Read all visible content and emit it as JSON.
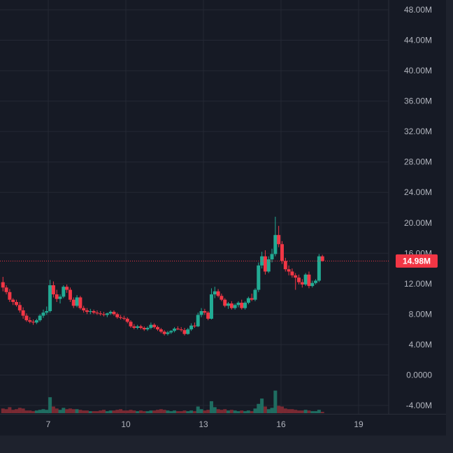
{
  "colors": {
    "background": "#161a25",
    "frame": "#1e222d",
    "grid": "#242834",
    "text": "#b2b5be",
    "up": "#22ab94",
    "down": "#f23645",
    "up_volume": "#1f6d61",
    "down_volume": "#7a2a33"
  },
  "chart_data": {
    "type": "candlestick",
    "ylim": [
      -5000000,
      50000000
    ],
    "y_ticks": [
      {
        "value": 48000000,
        "label": "48.00M"
      },
      {
        "value": 44000000,
        "label": "44.00M"
      },
      {
        "value": 40000000,
        "label": "40.00M"
      },
      {
        "value": 36000000,
        "label": "36.00M"
      },
      {
        "value": 32000000,
        "label": "32.00M"
      },
      {
        "value": 28000000,
        "label": "28.00M"
      },
      {
        "value": 24000000,
        "label": "24.00M"
      },
      {
        "value": 20000000,
        "label": "20.00M"
      },
      {
        "value": 16000000,
        "label": "16.00M"
      },
      {
        "value": 12000000,
        "label": "12.00M"
      },
      {
        "value": 8000000,
        "label": "8.00M"
      },
      {
        "value": 4000000,
        "label": "4.00M"
      },
      {
        "value": 0,
        "label": "0.0000"
      },
      {
        "value": -4000000,
        "label": "-4.00M"
      }
    ],
    "x_ticks": [
      {
        "x": 7,
        "label": "7"
      },
      {
        "x": 10,
        "label": "10"
      },
      {
        "x": 13,
        "label": "13"
      },
      {
        "x": 16,
        "label": "16"
      },
      {
        "x": 19,
        "label": "19"
      }
    ],
    "x_range": [
      5.2,
      19.85
    ],
    "last_price": {
      "value": 14980000,
      "label": "14.98M"
    },
    "candles": [
      [
        5.25,
        12.2,
        12.9,
        11.0,
        11.5
      ],
      [
        5.38,
        11.5,
        11.8,
        10.6,
        10.9
      ],
      [
        5.51,
        10.9,
        11.3,
        9.6,
        9.9
      ],
      [
        5.64,
        9.9,
        10.1,
        9.2,
        9.6
      ],
      [
        5.77,
        9.6,
        9.9,
        9.0,
        9.2
      ],
      [
        5.9,
        9.2,
        9.6,
        8.2,
        8.5
      ],
      [
        6.03,
        8.5,
        8.9,
        7.4,
        7.8
      ],
      [
        6.16,
        7.8,
        8.1,
        7.0,
        7.2
      ],
      [
        6.29,
        7.2,
        7.6,
        6.8,
        7.0
      ],
      [
        6.42,
        7.0,
        7.3,
        6.6,
        6.9
      ],
      [
        6.55,
        6.9,
        7.4,
        6.7,
        7.2
      ],
      [
        6.68,
        7.2,
        8.0,
        7.0,
        7.8
      ],
      [
        6.81,
        7.8,
        8.6,
        7.5,
        8.2
      ],
      [
        6.94,
        8.2,
        9.0,
        7.9,
        8.4
      ],
      [
        7.07,
        8.4,
        12.5,
        8.2,
        11.8
      ],
      [
        7.2,
        11.8,
        12.3,
        10.2,
        10.6
      ],
      [
        7.33,
        10.6,
        11.2,
        9.6,
        10.0
      ],
      [
        7.46,
        10.0,
        10.6,
        9.4,
        10.3
      ],
      [
        7.59,
        10.3,
        11.8,
        10.1,
        11.6
      ],
      [
        7.72,
        11.6,
        11.9,
        10.8,
        11.2
      ],
      [
        7.85,
        11.2,
        11.5,
        9.6,
        9.9
      ],
      [
        7.98,
        9.9,
        10.2,
        8.8,
        9.1
      ],
      [
        8.11,
        9.1,
        10.5,
        8.9,
        10.2
      ],
      [
        8.24,
        10.2,
        10.4,
        8.6,
        8.8
      ],
      [
        8.37,
        8.8,
        9.1,
        8.2,
        8.5
      ],
      [
        8.5,
        8.5,
        8.8,
        8.0,
        8.3
      ],
      [
        8.63,
        8.3,
        8.7,
        8.0,
        8.4
      ],
      [
        8.76,
        8.4,
        8.6,
        8.0,
        8.2
      ],
      [
        8.89,
        8.2,
        8.5,
        7.9,
        8.1
      ],
      [
        9.02,
        8.1,
        8.4,
        7.8,
        8.0
      ],
      [
        9.15,
        8.0,
        8.3,
        7.7,
        7.9
      ],
      [
        9.28,
        7.9,
        8.2,
        7.6,
        8.1
      ],
      [
        9.41,
        8.1,
        8.5,
        7.9,
        8.3
      ],
      [
        9.54,
        8.3,
        8.5,
        7.8,
        8.0
      ],
      [
        9.67,
        8.0,
        8.2,
        7.4,
        7.6
      ],
      [
        9.8,
        7.6,
        7.9,
        7.3,
        7.5
      ],
      [
        9.93,
        7.5,
        7.8,
        7.2,
        7.4
      ],
      [
        10.06,
        7.4,
        7.6,
        6.8,
        7.0
      ],
      [
        10.19,
        7.0,
        7.2,
        6.2,
        6.4
      ],
      [
        10.32,
        6.4,
        6.7,
        6.0,
        6.2
      ],
      [
        10.45,
        6.2,
        6.6,
        6.0,
        6.4
      ],
      [
        10.58,
        6.4,
        6.6,
        6.0,
        6.2
      ],
      [
        10.71,
        6.2,
        6.4,
        5.8,
        6.0
      ],
      [
        10.84,
        6.0,
        6.4,
        5.8,
        6.2
      ],
      [
        10.97,
        6.2,
        6.9,
        6.0,
        6.6
      ],
      [
        11.1,
        6.6,
        6.8,
        6.1,
        6.3
      ],
      [
        11.23,
        6.3,
        6.5,
        5.8,
        6.0
      ],
      [
        11.36,
        6.0,
        6.2,
        5.5,
        5.7
      ],
      [
        11.49,
        5.7,
        5.9,
        5.2,
        5.4
      ],
      [
        11.62,
        5.4,
        5.8,
        5.2,
        5.6
      ],
      [
        11.75,
        5.6,
        5.9,
        5.4,
        5.8
      ],
      [
        11.88,
        5.8,
        6.3,
        5.6,
        6.1
      ],
      [
        12.01,
        6.1,
        6.4,
        5.9,
        6.0
      ],
      [
        12.14,
        6.0,
        6.3,
        5.7,
        5.9
      ],
      [
        12.27,
        5.9,
        6.2,
        5.2,
        5.4
      ],
      [
        12.4,
        5.4,
        6.2,
        5.3,
        6.0
      ],
      [
        12.53,
        6.0,
        6.8,
        5.8,
        6.5
      ],
      [
        12.66,
        6.5,
        6.9,
        6.2,
        6.4
      ],
      [
        12.79,
        6.4,
        8.2,
        6.3,
        7.9
      ],
      [
        12.92,
        7.9,
        8.8,
        7.6,
        8.4
      ],
      [
        13.05,
        8.4,
        8.7,
        7.9,
        8.2
      ],
      [
        13.18,
        8.2,
        8.4,
        7.2,
        7.4
      ],
      [
        13.31,
        7.4,
        11.4,
        7.3,
        10.6
      ],
      [
        13.44,
        10.6,
        11.6,
        10.1,
        11.0
      ],
      [
        13.57,
        11.0,
        11.3,
        10.2,
        10.4
      ],
      [
        13.7,
        10.4,
        10.7,
        9.7,
        9.9
      ],
      [
        13.83,
        9.9,
        10.1,
        8.9,
        9.1
      ],
      [
        13.96,
        9.1,
        9.6,
        8.7,
        9.4
      ],
      [
        14.09,
        9.4,
        9.7,
        8.6,
        8.8
      ],
      [
        14.22,
        8.8,
        9.4,
        8.6,
        9.2
      ],
      [
        14.35,
        9.2,
        9.7,
        8.9,
        9.5
      ],
      [
        14.48,
        9.5,
        9.9,
        8.6,
        8.8
      ],
      [
        14.61,
        8.8,
        9.7,
        8.6,
        9.5
      ],
      [
        14.74,
        9.5,
        10.3,
        9.3,
        10.1
      ],
      [
        14.87,
        10.1,
        10.7,
        9.7,
        9.9
      ],
      [
        15.0,
        9.9,
        11.4,
        9.7,
        11.2
      ],
      [
        15.13,
        11.2,
        14.8,
        10.9,
        14.4
      ],
      [
        15.26,
        14.4,
        16.2,
        14.0,
        15.6
      ],
      [
        15.39,
        15.6,
        16.4,
        13.2,
        13.6
      ],
      [
        15.52,
        13.6,
        15.6,
        13.4,
        15.2
      ],
      [
        15.65,
        15.2,
        16.6,
        14.8,
        15.9
      ],
      [
        15.78,
        15.9,
        20.8,
        15.6,
        18.4
      ],
      [
        15.91,
        18.4,
        19.6,
        16.8,
        17.2
      ],
      [
        16.04,
        17.2,
        17.6,
        14.6,
        15.0
      ],
      [
        16.17,
        15.0,
        15.4,
        13.6,
        13.9
      ],
      [
        16.3,
        13.9,
        14.4,
        13.1,
        13.6
      ],
      [
        16.43,
        13.6,
        14.0,
        12.8,
        13.1
      ],
      [
        16.56,
        13.1,
        13.4,
        11.2,
        12.8
      ],
      [
        16.69,
        12.8,
        13.2,
        11.9,
        12.2
      ],
      [
        16.82,
        12.2,
        12.6,
        11.5,
        11.9
      ],
      [
        16.95,
        11.9,
        13.4,
        11.7,
        13.2
      ],
      [
        17.08,
        13.2,
        13.6,
        11.4,
        11.7
      ],
      [
        17.21,
        11.7,
        12.4,
        11.5,
        12.1
      ],
      [
        17.34,
        12.1,
        12.6,
        11.9,
        12.4
      ],
      [
        17.47,
        12.4,
        15.9,
        12.2,
        15.6
      ],
      [
        17.6,
        15.6,
        15.8,
        14.9,
        15.0
      ]
    ],
    "volumes": [
      [
        5.25,
        0.7,
        "d"
      ],
      [
        5.38,
        0.6,
        "d"
      ],
      [
        5.51,
        0.9,
        "d"
      ],
      [
        5.64,
        0.5,
        "d"
      ],
      [
        5.77,
        0.6,
        "d"
      ],
      [
        5.9,
        0.8,
        "d"
      ],
      [
        6.03,
        0.7,
        "d"
      ],
      [
        6.16,
        0.4,
        "d"
      ],
      [
        6.29,
        0.4,
        "d"
      ],
      [
        6.42,
        0.3,
        "d"
      ],
      [
        6.55,
        0.4,
        "u"
      ],
      [
        6.68,
        0.5,
        "u"
      ],
      [
        6.81,
        0.6,
        "u"
      ],
      [
        6.94,
        0.5,
        "u"
      ],
      [
        7.07,
        2.4,
        "u"
      ],
      [
        7.2,
        1.0,
        "d"
      ],
      [
        7.33,
        0.7,
        "d"
      ],
      [
        7.46,
        0.5,
        "u"
      ],
      [
        7.59,
        0.8,
        "u"
      ],
      [
        7.72,
        0.6,
        "d"
      ],
      [
        7.85,
        0.7,
        "d"
      ],
      [
        7.98,
        0.6,
        "d"
      ],
      [
        8.11,
        0.6,
        "u"
      ],
      [
        8.24,
        0.5,
        "d"
      ],
      [
        8.37,
        0.4,
        "d"
      ],
      [
        8.5,
        0.4,
        "d"
      ],
      [
        8.63,
        0.3,
        "u"
      ],
      [
        8.76,
        0.3,
        "d"
      ],
      [
        8.89,
        0.3,
        "d"
      ],
      [
        9.02,
        0.4,
        "d"
      ],
      [
        9.15,
        0.5,
        "d"
      ],
      [
        9.28,
        0.3,
        "u"
      ],
      [
        9.41,
        0.4,
        "u"
      ],
      [
        9.54,
        0.4,
        "d"
      ],
      [
        9.67,
        0.5,
        "d"
      ],
      [
        9.8,
        0.6,
        "d"
      ],
      [
        9.93,
        0.4,
        "d"
      ],
      [
        10.06,
        0.4,
        "d"
      ],
      [
        10.19,
        0.5,
        "d"
      ],
      [
        10.32,
        0.4,
        "d"
      ],
      [
        10.45,
        0.3,
        "u"
      ],
      [
        10.58,
        0.4,
        "d"
      ],
      [
        10.71,
        0.3,
        "d"
      ],
      [
        10.84,
        0.3,
        "u"
      ],
      [
        10.97,
        0.4,
        "u"
      ],
      [
        11.1,
        0.4,
        "d"
      ],
      [
        11.23,
        0.5,
        "d"
      ],
      [
        11.36,
        0.6,
        "d"
      ],
      [
        11.49,
        0.5,
        "d"
      ],
      [
        11.62,
        0.4,
        "u"
      ],
      [
        11.75,
        0.3,
        "u"
      ],
      [
        11.88,
        0.4,
        "u"
      ],
      [
        12.01,
        0.3,
        "d"
      ],
      [
        12.14,
        0.3,
        "d"
      ],
      [
        12.27,
        0.4,
        "d"
      ],
      [
        12.4,
        0.3,
        "u"
      ],
      [
        12.53,
        0.4,
        "u"
      ],
      [
        12.66,
        0.3,
        "d"
      ],
      [
        12.79,
        1.0,
        "u"
      ],
      [
        12.92,
        0.6,
        "u"
      ],
      [
        13.05,
        0.4,
        "d"
      ],
      [
        13.18,
        0.5,
        "d"
      ],
      [
        13.31,
        1.8,
        "u"
      ],
      [
        13.44,
        0.9,
        "u"
      ],
      [
        13.57,
        0.6,
        "d"
      ],
      [
        13.7,
        0.5,
        "d"
      ],
      [
        13.83,
        0.6,
        "d"
      ],
      [
        13.96,
        0.4,
        "u"
      ],
      [
        14.09,
        0.5,
        "d"
      ],
      [
        14.22,
        0.4,
        "u"
      ],
      [
        14.35,
        0.3,
        "u"
      ],
      [
        14.48,
        0.4,
        "d"
      ],
      [
        14.61,
        0.3,
        "u"
      ],
      [
        14.74,
        0.4,
        "u"
      ],
      [
        14.87,
        0.3,
        "d"
      ],
      [
        15.0,
        0.7,
        "u"
      ],
      [
        15.13,
        1.4,
        "u"
      ],
      [
        15.26,
        2.2,
        "u"
      ],
      [
        15.39,
        1.0,
        "d"
      ],
      [
        15.52,
        0.6,
        "u"
      ],
      [
        15.65,
        0.8,
        "u"
      ],
      [
        15.78,
        3.4,
        "u"
      ],
      [
        15.91,
        1.1,
        "d"
      ],
      [
        16.04,
        1.0,
        "d"
      ],
      [
        16.17,
        0.7,
        "d"
      ],
      [
        16.3,
        0.6,
        "d"
      ],
      [
        16.43,
        0.6,
        "d"
      ],
      [
        16.56,
        0.5,
        "d"
      ],
      [
        16.69,
        0.4,
        "d"
      ],
      [
        16.82,
        0.4,
        "d"
      ],
      [
        16.95,
        0.5,
        "u"
      ],
      [
        17.08,
        0.4,
        "d"
      ],
      [
        17.21,
        0.3,
        "u"
      ],
      [
        17.34,
        0.3,
        "u"
      ],
      [
        17.47,
        0.5,
        "u"
      ],
      [
        17.6,
        0.2,
        "d"
      ]
    ]
  }
}
